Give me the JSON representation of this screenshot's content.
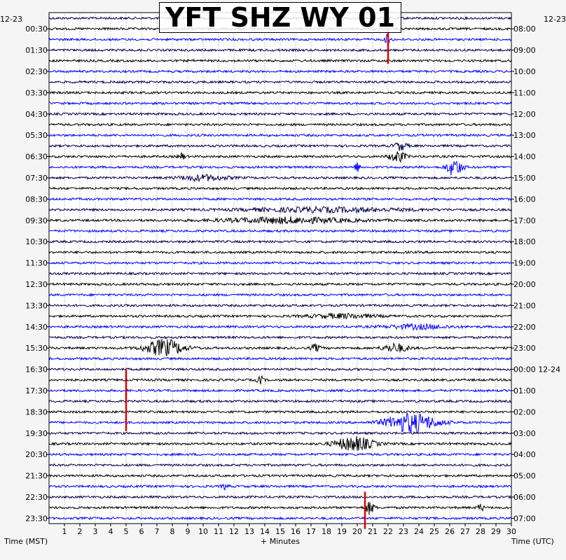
{
  "title": "YFT SHZ WY 01",
  "left_date": "12-23",
  "right_date_top": "12-23",
  "right_date_mid": "12-24",
  "xlabel_left": "Time (MST)",
  "xlabel_center": "+ Minutes",
  "xlabel_right": "Time (UTC)",
  "colors": {
    "trace_dark": "#00004c",
    "trace_black": "#000000",
    "trace_blue": "#0000ff",
    "pick": "#dd0000",
    "frame": "#000000",
    "background": "#ffffff"
  },
  "chart_data": {
    "type": "line",
    "subtype": "helicorder",
    "title": "YFT SHZ WY 01",
    "xlabel": "+ Minutes",
    "xlim": [
      0,
      30
    ],
    "x_ticks": [
      1,
      2,
      3,
      4,
      5,
      6,
      7,
      8,
      9,
      10,
      11,
      12,
      13,
      14,
      15,
      16,
      17,
      18,
      19,
      20,
      21,
      22,
      23,
      24,
      25,
      26,
      27,
      28,
      29,
      30
    ],
    "rows_per_hour": 2,
    "row_minutes": 30,
    "row_count": 48,
    "left_ticks_mst": [
      "00:30",
      "01:30",
      "02:30",
      "03:30",
      "04:30",
      "05:30",
      "06:30",
      "07:30",
      "08:30",
      "09:30",
      "10:30",
      "11:30",
      "12:30",
      "13:30",
      "14:30",
      "15:30",
      "16:30",
      "17:30",
      "18:30",
      "19:30",
      "20:30",
      "21:30",
      "22:30",
      "23:30"
    ],
    "right_ticks_utc": [
      "08:00",
      "09:00",
      "10:00",
      "11:00",
      "12:00",
      "13:00",
      "14:00",
      "15:00",
      "16:00",
      "17:00",
      "18:00",
      "19:00",
      "20:00",
      "21:00",
      "22:00",
      "23:00",
      "00:00 12-24",
      "01:00",
      "02:00",
      "03:00",
      "04:00",
      "05:00",
      "06:00",
      "07:00"
    ],
    "color_cycle": [
      "#00004c",
      "#000000",
      "#0000ff"
    ],
    "events": [
      {
        "row": 2,
        "minute": 22.0,
        "amp": 7,
        "width": 0.2
      },
      {
        "row": 12,
        "minute": 22.8,
        "amp": 6,
        "width": 0.4
      },
      {
        "row": 13,
        "minute": 22.6,
        "amp": 8,
        "width": 0.5
      },
      {
        "row": 13,
        "minute": 8.6,
        "amp": 5,
        "width": 0.2
      },
      {
        "row": 14,
        "minute": 26.3,
        "amp": 12,
        "width": 0.5
      },
      {
        "row": 14,
        "minute": 20.0,
        "amp": 6,
        "width": 0.2
      },
      {
        "row": 15,
        "minute": 10.0,
        "amp": 4,
        "width": 1.5
      },
      {
        "row": 18,
        "minute": 18.0,
        "amp": 3,
        "width": 5.0
      },
      {
        "row": 19,
        "minute": 15.5,
        "amp": 4,
        "width": 4.0
      },
      {
        "row": 28,
        "minute": 19.0,
        "amp": 3,
        "width": 2.0
      },
      {
        "row": 29,
        "minute": 24.0,
        "amp": 3,
        "width": 2.0
      },
      {
        "row": 31,
        "minute": 7.5,
        "amp": 12,
        "width": 1.2
      },
      {
        "row": 31,
        "minute": 22.5,
        "amp": 6,
        "width": 0.8
      },
      {
        "row": 31,
        "minute": 17.3,
        "amp": 5,
        "width": 0.3
      },
      {
        "row": 34,
        "minute": 13.7,
        "amp": 6,
        "width": 0.2
      },
      {
        "row": 38,
        "minute": 23.5,
        "amp": 14,
        "width": 1.6
      },
      {
        "row": 40,
        "minute": 19.8,
        "amp": 10,
        "width": 1.2
      },
      {
        "row": 44,
        "minute": 11.4,
        "amp": 4,
        "width": 0.2
      },
      {
        "row": 46,
        "minute": 20.8,
        "amp": 9,
        "width": 0.3
      },
      {
        "row": 46,
        "minute": 28.0,
        "amp": 5,
        "width": 0.2
      }
    ],
    "picks": [
      {
        "minute": 22.0,
        "row_start": 1,
        "row_end": 4.3
      },
      {
        "minute": 5.0,
        "row_start": 33,
        "row_end": 38.8
      },
      {
        "minute": 20.5,
        "row_start": 44.5,
        "row_end": 48
      }
    ]
  }
}
